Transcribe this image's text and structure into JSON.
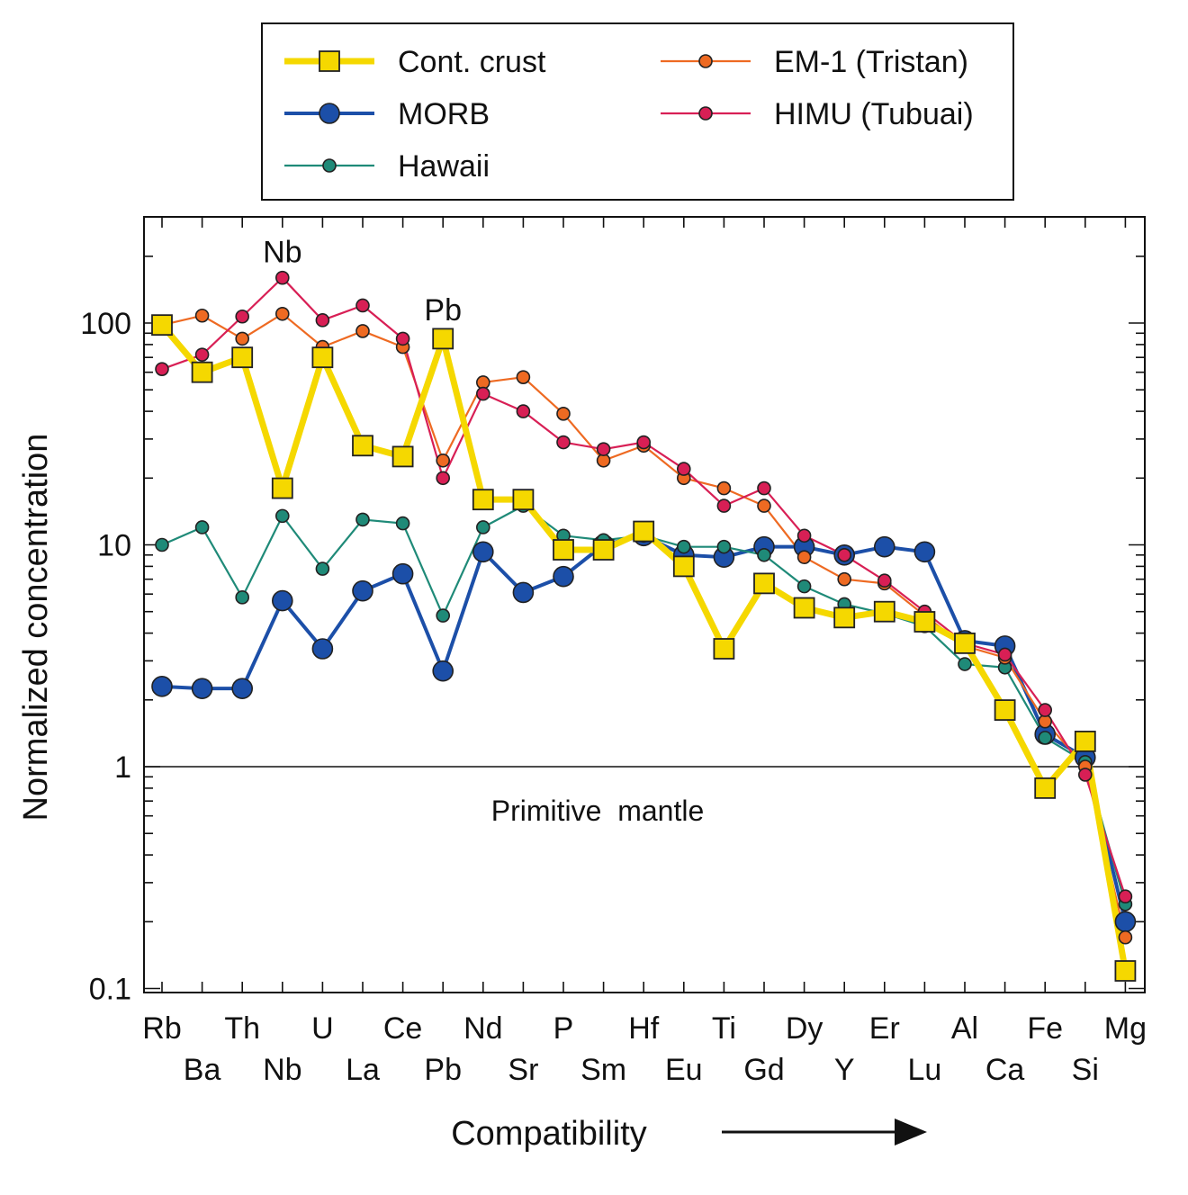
{
  "chart_data": {
    "type": "line",
    "x": [
      "Rb",
      "Ba",
      "Th",
      "Nb",
      "U",
      "La",
      "Ce",
      "Pb",
      "Nd",
      "Sr",
      "P",
      "Sm",
      "Hf",
      "Eu",
      "Ti",
      "Gd",
      "Dy",
      "Y",
      "Er",
      "Lu",
      "Al",
      "Ca",
      "Fe",
      "Si",
      "Mg"
    ],
    "xlabel": "Compatibility",
    "ylabel": "Normalized concentration",
    "yscale": "log",
    "ylim": [
      0.1,
      250
    ],
    "yticks": [
      "0.1",
      "1",
      "10",
      "100"
    ],
    "reference_line": {
      "y": 1,
      "label": "Primitive  mantle"
    },
    "annotations": [
      {
        "text": "Nb",
        "x": "Nb",
        "y": 210
      },
      {
        "text": "Pb",
        "x": "Pb",
        "y": 115
      }
    ],
    "legend_position": "top, above plot",
    "series": [
      {
        "name": "Cont. crust",
        "color": "#f5d800",
        "marker": "square",
        "values": [
          98,
          60,
          70,
          18,
          70,
          28,
          25,
          85,
          16,
          16,
          9.5,
          9.5,
          11.5,
          8,
          3.4,
          6.7,
          5.2,
          4.7,
          5,
          4.5,
          3.6,
          1.8,
          0.8,
          1.3,
          0.12
        ]
      },
      {
        "name": "MORB",
        "color": "#1c4fa8",
        "marker": "circle",
        "values": [
          2.3,
          2.25,
          2.25,
          5.6,
          3.4,
          6.2,
          7.4,
          2.7,
          9.3,
          6.1,
          7.2,
          10,
          11,
          9,
          8.8,
          9.8,
          9.8,
          9,
          9.8,
          9.3,
          3.7,
          3.5,
          1.4,
          1.1,
          0.2
        ]
      },
      {
        "name": "Hawaii",
        "color": "#1f8a78",
        "marker": "circle",
        "values": [
          10,
          12,
          5.8,
          13.5,
          7.8,
          13,
          12.5,
          4.8,
          12,
          15,
          11,
          10.5,
          11,
          9.8,
          9.8,
          9,
          6.5,
          5.4,
          4.9,
          4.3,
          2.9,
          2.8,
          1.35,
          1.05,
          0.24
        ]
      },
      {
        "name": "EM-1 (Tristan)",
        "color": "#ee6a22",
        "marker": "circle",
        "values": [
          98,
          108,
          85,
          110,
          78,
          92,
          78,
          24,
          54,
          57,
          39,
          24,
          28,
          20,
          18,
          15,
          8.8,
          7,
          6.7,
          4.8,
          3.5,
          3.1,
          1.6,
          1.0,
          0.17
        ]
      },
      {
        "name": "HIMU (Tubuai)",
        "color": "#d81f55",
        "marker": "circle",
        "values": [
          62,
          72,
          107,
          160,
          103,
          120,
          85,
          20,
          48,
          40,
          29,
          27,
          29,
          22,
          15,
          18,
          11,
          9,
          6.9,
          5,
          3.6,
          3.2,
          1.8,
          0.92,
          0.26
        ]
      }
    ]
  }
}
